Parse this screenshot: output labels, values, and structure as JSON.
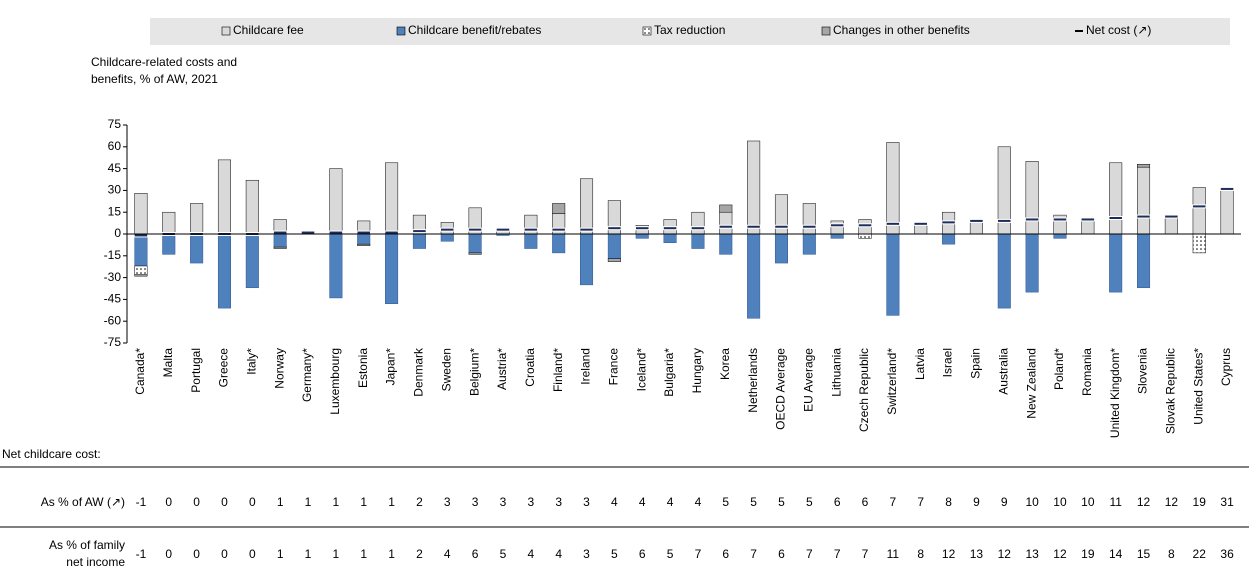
{
  "chart_data": {
    "type": "stacked-bar",
    "y_label": [
      "Childcare-related costs and",
      "benefits, % of AW, 2021"
    ],
    "categories": [
      "Canada*",
      "Malta",
      "Portugal",
      "Greece",
      "Italy*",
      "Norway",
      "Germany*",
      "Luxembourg",
      "Estonia",
      "Japan*",
      "Denmark",
      "Sweden",
      "Belgium*",
      "Austria*",
      "Croatia",
      "Finland*",
      "Ireland",
      "France",
      "Iceland*",
      "Bulgaria*",
      "Hungary",
      "Korea",
      "Netherlands",
      "OECD Average",
      "EU Average",
      "Lithuania",
      "Czech Republic",
      "Switzerland*",
      "Latvia",
      "Israel",
      "Spain",
      "Australia",
      "New Zealand",
      "Poland*",
      "Romania",
      "United Kingdom*",
      "Slovenia",
      "Slovak Republic",
      "United States*",
      "Cyprus"
    ],
    "series": [
      {
        "name": "Childcare fee",
        "color": "#d9d9d9",
        "values": [
          28,
          15,
          21,
          51,
          37,
          10,
          1,
          45,
          9,
          49,
          13,
          8,
          18,
          3,
          13,
          14,
          38,
          23,
          6,
          10,
          15,
          15,
          64,
          27,
          21,
          9,
          10,
          63,
          7,
          15,
          9,
          60,
          50,
          13,
          10,
          49,
          46,
          12,
          32,
          31
        ]
      },
      {
        "name": "Childcare benefit/rebates",
        "color": "#4f81bd",
        "values": [
          -22,
          -14,
          -20,
          -51,
          -37,
          -9,
          0,
          -44,
          -7,
          -48,
          -10,
          -5,
          -13,
          -1,
          -10,
          -13,
          -35,
          -17,
          -3,
          -6,
          -10,
          -14,
          -58,
          -20,
          -14,
          -3,
          0,
          -56,
          0,
          -7,
          0,
          -51,
          -40,
          -3,
          0,
          -40,
          -37,
          0,
          0,
          0
        ]
      },
      {
        "name": "Tax reduction",
        "color": "#ffffff",
        "values": [
          -6,
          0,
          0,
          0,
          0,
          0,
          0,
          0,
          0,
          0,
          0,
          0,
          0,
          0,
          0,
          0,
          0,
          0,
          0,
          0,
          0,
          0,
          0,
          0,
          0,
          0,
          -3,
          0,
          0,
          0,
          0,
          0,
          0,
          0,
          0,
          0,
          0,
          0,
          -13,
          0
        ]
      },
      {
        "name": "Changes in other benefits",
        "color": "#a6a6a6",
        "values": [
          -1,
          0,
          0,
          0,
          0,
          -1,
          0,
          0,
          -1,
          0,
          0,
          0,
          -1,
          0,
          0,
          7,
          0,
          -2,
          0,
          0,
          0,
          5,
          0,
          0,
          0,
          0,
          0,
          0,
          0,
          0,
          0,
          0,
          0,
          0,
          0,
          0,
          2,
          0,
          0,
          0
        ]
      },
      {
        "name": "Net cost (↗)",
        "color": "#1f2d5a",
        "values": [
          -1,
          0,
          0,
          0,
          0,
          1,
          1,
          1,
          1,
          1,
          2,
          3,
          3,
          3,
          3,
          3,
          3,
          4,
          4,
          4,
          4,
          5,
          5,
          5,
          5,
          6,
          6,
          7,
          7,
          8,
          9,
          9,
          10,
          10,
          10,
          11,
          12,
          12,
          19,
          31
        ]
      }
    ],
    "ylim": [
      -75,
      75
    ],
    "yticks": [
      -75,
      -60,
      -45,
      -30,
      -15,
      0,
      15,
      30,
      45,
      60,
      75
    ],
    "grid": false
  },
  "table": {
    "title": "Net childcare cost:",
    "rows": [
      {
        "label": "As % of AW (↗)"
      },
      {
        "label": [
          "As % of family",
          "net income"
        ],
        "values": [
          -1,
          0,
          0,
          0,
          0,
          1,
          1,
          1,
          1,
          1,
          2,
          4,
          6,
          5,
          4,
          4,
          3,
          5,
          6,
          5,
          7,
          6,
          7,
          6,
          7,
          7,
          7,
          11,
          8,
          12,
          13,
          12,
          13,
          12,
          19,
          14,
          15,
          8,
          22,
          36
        ]
      }
    ]
  }
}
